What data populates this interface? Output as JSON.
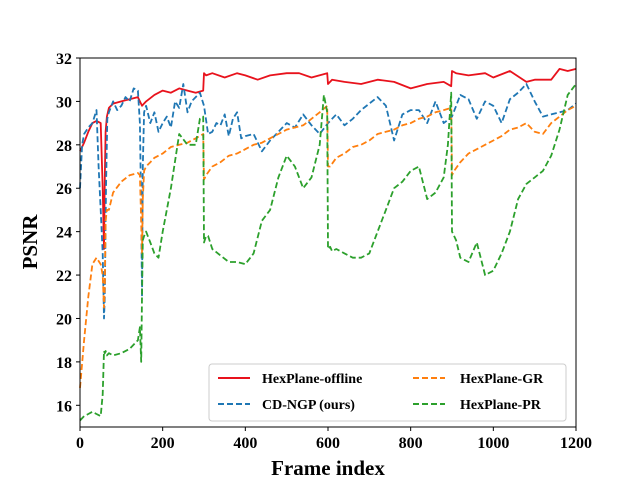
{
  "chart_data": {
    "type": "line",
    "title": "",
    "xlabel": "Frame index",
    "ylabel": "PSNR",
    "xlim": [
      0,
      1200
    ],
    "ylim": [
      15,
      32
    ],
    "xticks": [
      0,
      200,
      400,
      600,
      800,
      1000,
      1200
    ],
    "yticks": [
      16,
      18,
      20,
      22,
      24,
      26,
      28,
      30,
      32
    ],
    "grid": false,
    "legend_position": "lower-right",
    "series": [
      {
        "name": "HexPlane-offline",
        "color": "#e8121c",
        "dash": "solid",
        "x": [
          0,
          10,
          20,
          30,
          40,
          50,
          55,
          58,
          60,
          62,
          65,
          70,
          80,
          100,
          120,
          140,
          150,
          160,
          180,
          200,
          220,
          240,
          260,
          280,
          298,
          300,
          305,
          320,
          350,
          380,
          400,
          430,
          460,
          500,
          530,
          560,
          598,
          600,
          610,
          640,
          680,
          720,
          760,
          800,
          840,
          880,
          898,
          900,
          910,
          940,
          980,
          1000,
          1040,
          1080,
          1100,
          1140,
          1160,
          1180,
          1200
        ],
        "y": [
          27.7,
          28.1,
          28.6,
          29.0,
          29.1,
          29.0,
          26.0,
          23.2,
          26.5,
          28.6,
          29.3,
          29.7,
          29.9,
          30.0,
          30.1,
          30.2,
          29.8,
          30.0,
          30.3,
          30.5,
          30.4,
          30.6,
          30.5,
          30.4,
          30.5,
          31.3,
          31.2,
          31.3,
          31.1,
          31.3,
          31.2,
          31.0,
          31.2,
          31.3,
          31.3,
          31.1,
          31.3,
          30.8,
          31.0,
          30.9,
          30.8,
          31.0,
          30.9,
          30.6,
          30.8,
          30.9,
          30.7,
          31.4,
          31.3,
          31.2,
          31.3,
          31.1,
          31.4,
          30.9,
          31.0,
          31.0,
          31.5,
          31.4,
          31.5
        ]
      },
      {
        "name": "CD-NGP (ours)",
        "color": "#1f77b4",
        "dash": "6,3",
        "x": [
          0,
          5,
          10,
          20,
          30,
          40,
          45,
          50,
          55,
          58,
          60,
          63,
          66,
          70,
          80,
          90,
          100,
          110,
          120,
          130,
          140,
          145,
          148,
          150,
          152,
          155,
          160,
          170,
          180,
          190,
          200,
          210,
          220,
          230,
          240,
          250,
          260,
          270,
          280,
          290,
          300,
          310,
          320,
          330,
          340,
          350,
          360,
          370,
          380,
          390,
          400,
          420,
          440,
          460,
          480,
          500,
          520,
          540,
          560,
          580,
          600,
          620,
          640,
          660,
          680,
          700,
          720,
          740,
          760,
          780,
          800,
          820,
          840,
          860,
          880,
          900,
          920,
          940,
          960,
          980,
          1000,
          1020,
          1040,
          1060,
          1080,
          1100,
          1120,
          1140,
          1160,
          1180,
          1200
        ],
        "y": [
          26.0,
          28.0,
          28.5,
          28.8,
          29.0,
          29.6,
          27.0,
          25.0,
          23.0,
          20.0,
          21.0,
          26.0,
          29.2,
          29.5,
          30.0,
          29.6,
          29.8,
          30.2,
          30.0,
          30.6,
          30.5,
          29.0,
          25.0,
          21.0,
          27.0,
          29.5,
          29.8,
          29.0,
          29.5,
          28.6,
          29.0,
          29.3,
          28.8,
          30.0,
          29.7,
          30.8,
          29.5,
          30.0,
          30.2,
          30.4,
          29.8,
          28.5,
          28.6,
          29.0,
          28.9,
          29.4,
          28.4,
          29.2,
          29.5,
          28.3,
          28.4,
          28.5,
          27.7,
          28.2,
          28.6,
          29.0,
          28.8,
          29.4,
          28.9,
          28.5,
          29.0,
          29.4,
          28.9,
          29.2,
          29.6,
          29.9,
          30.2,
          29.8,
          28.2,
          29.4,
          29.6,
          29.6,
          29.0,
          30.0,
          29.0,
          29.3,
          30.3,
          30.1,
          29.2,
          30.0,
          29.8,
          29.0,
          30.1,
          30.4,
          30.8,
          30.0,
          29.3,
          29.4,
          29.5,
          29.6,
          29.9
        ]
      },
      {
        "name": "HexPlane-GR",
        "color": "#ff7f0e",
        "dash": "6,3",
        "x": [
          0,
          10,
          20,
          30,
          40,
          50,
          55,
          58,
          60,
          62,
          65,
          70,
          80,
          100,
          120,
          140,
          145,
          148,
          150,
          152,
          155,
          160,
          170,
          180,
          190,
          200,
          220,
          240,
          260,
          280,
          298,
          300,
          305,
          320,
          340,
          360,
          380,
          400,
          420,
          440,
          460,
          480,
          500,
          520,
          540,
          560,
          580,
          598,
          600,
          605,
          620,
          640,
          660,
          680,
          700,
          720,
          740,
          760,
          780,
          800,
          820,
          840,
          860,
          880,
          898,
          900,
          905,
          920,
          940,
          960,
          980,
          1000,
          1020,
          1040,
          1060,
          1080,
          1100,
          1120,
          1140,
          1160,
          1180,
          1200
        ],
        "y": [
          16.8,
          19.0,
          21.0,
          22.5,
          22.8,
          22.5,
          22.0,
          20.5,
          21.5,
          24.5,
          25.0,
          25.0,
          25.8,
          26.3,
          26.6,
          26.7,
          26.6,
          24.5,
          23.0,
          25.5,
          26.8,
          27.0,
          27.2,
          27.4,
          27.5,
          27.6,
          27.9,
          28.0,
          28.1,
          28.3,
          28.5,
          26.4,
          26.6,
          27.0,
          27.2,
          27.5,
          27.6,
          27.8,
          28.0,
          28.1,
          28.3,
          28.5,
          28.7,
          28.8,
          28.9,
          29.2,
          29.5,
          29.8,
          27.0,
          27.0,
          27.4,
          27.6,
          27.9,
          28.0,
          28.2,
          28.5,
          28.6,
          28.7,
          28.9,
          29.0,
          29.2,
          29.3,
          29.5,
          29.6,
          29.7,
          26.6,
          26.8,
          27.2,
          27.6,
          27.8,
          28.0,
          28.2,
          28.4,
          28.7,
          28.8,
          29.0,
          28.6,
          28.5,
          29.0,
          29.3,
          29.6,
          29.8
        ]
      },
      {
        "name": "HexPlane-PR",
        "color": "#2ca02c",
        "dash": "6,3",
        "x": [
          0,
          10,
          20,
          30,
          40,
          50,
          55,
          58,
          60,
          62,
          65,
          70,
          80,
          100,
          120,
          140,
          145,
          148,
          150,
          152,
          155,
          160,
          170,
          180,
          190,
          200,
          210,
          220,
          240,
          260,
          280,
          290,
          298,
          300,
          305,
          310,
          320,
          340,
          360,
          380,
          400,
          420,
          440,
          460,
          480,
          500,
          520,
          540,
          560,
          580,
          590,
          598,
          600,
          605,
          610,
          620,
          640,
          660,
          680,
          700,
          720,
          740,
          760,
          780,
          800,
          820,
          840,
          860,
          880,
          890,
          898,
          900,
          905,
          910,
          920,
          940,
          960,
          980,
          1000,
          1020,
          1040,
          1060,
          1080,
          1100,
          1120,
          1140,
          1160,
          1180,
          1200
        ],
        "y": [
          15.3,
          15.5,
          15.6,
          15.7,
          15.6,
          15.5,
          16.5,
          18.5,
          18.4,
          18.5,
          18.3,
          18.4,
          18.3,
          18.4,
          18.6,
          19.0,
          19.6,
          18.0,
          21.0,
          23.6,
          23.8,
          24.0,
          23.5,
          23.0,
          22.8,
          24.0,
          25.0,
          26.0,
          28.5,
          28.0,
          28.0,
          29.2,
          29.3,
          23.5,
          23.8,
          23.8,
          23.2,
          22.9,
          22.6,
          22.6,
          22.5,
          23.0,
          24.5,
          25.0,
          26.5,
          27.5,
          27.0,
          26.0,
          26.5,
          28.0,
          30.3,
          29.5,
          23.2,
          23.3,
          23.1,
          23.2,
          23.0,
          22.8,
          22.8,
          23.0,
          24.0,
          25.0,
          26.0,
          26.3,
          26.8,
          27.0,
          25.5,
          25.8,
          26.5,
          28.0,
          30.4,
          24.0,
          23.8,
          23.6,
          22.8,
          22.6,
          23.5,
          22.0,
          22.2,
          23.0,
          24.0,
          25.5,
          26.2,
          26.5,
          26.8,
          27.5,
          28.7,
          30.3,
          30.8
        ]
      }
    ]
  }
}
